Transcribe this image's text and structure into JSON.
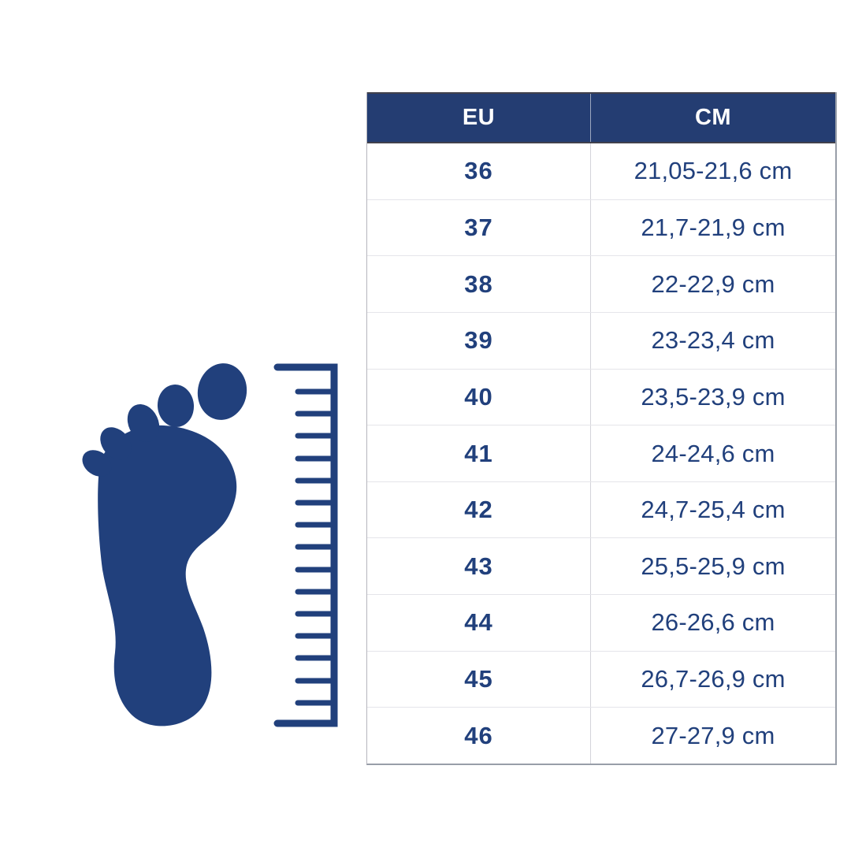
{
  "colors": {
    "navy": "#21407c",
    "header_bg": "#243d72",
    "header_text": "#ffffff"
  },
  "illustration": {
    "description": "foot-measurement",
    "footprint": "footprint-icon",
    "ruler": "ruler-icon"
  },
  "size_table": {
    "columns": [
      "EU",
      "CM"
    ],
    "rows": [
      {
        "eu": "36",
        "cm": "21,05-21,6 cm"
      },
      {
        "eu": "37",
        "cm": "21,7-21,9 cm"
      },
      {
        "eu": "38",
        "cm": "22-22,9 cm"
      },
      {
        "eu": "39",
        "cm": "23-23,4 cm"
      },
      {
        "eu": "40",
        "cm": "23,5-23,9 cm"
      },
      {
        "eu": "41",
        "cm": "24-24,6 cm"
      },
      {
        "eu": "42",
        "cm": "24,7-25,4 cm"
      },
      {
        "eu": "43",
        "cm": "25,5-25,9 cm"
      },
      {
        "eu": "44",
        "cm": "26-26,6 cm"
      },
      {
        "eu": "45",
        "cm": "26,7-26,9 cm"
      },
      {
        "eu": "46",
        "cm": "27-27,9 cm"
      }
    ]
  },
  "chart_data": {
    "type": "table",
    "columns": [
      "EU",
      "CM"
    ],
    "rows": [
      [
        "36",
        "21,05-21,6 cm"
      ],
      [
        "37",
        "21,7-21,9 cm"
      ],
      [
        "38",
        "22-22,9 cm"
      ],
      [
        "39",
        "23-23,4 cm"
      ],
      [
        "40",
        "23,5-23,9 cm"
      ],
      [
        "41",
        "24-24,6 cm"
      ],
      [
        "42",
        "24,7-25,4 cm"
      ],
      [
        "43",
        "25,5-25,9 cm"
      ],
      [
        "44",
        "26-26,6 cm"
      ],
      [
        "45",
        "26,7-26,9 cm"
      ],
      [
        "46",
        "27-27,9 cm"
      ]
    ],
    "legend_position": "none",
    "grid": true
  }
}
